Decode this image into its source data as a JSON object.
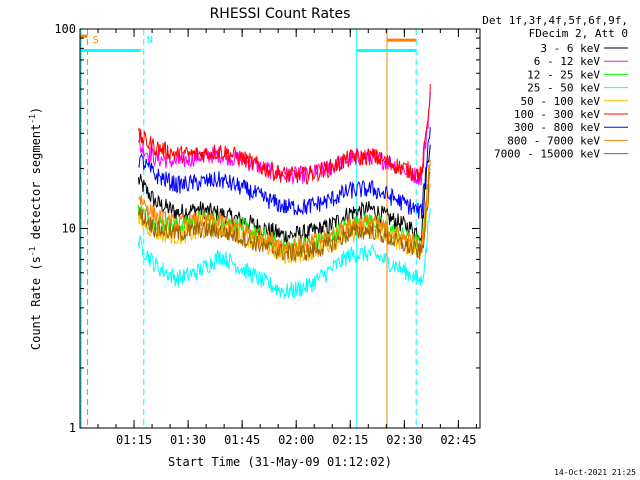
{
  "chart_data": {
    "type": "line",
    "title": "RHESSI Count Rates",
    "xlabel": "Start Time (31-May-09 01:12:02)",
    "ylabel_main": "Count Rate (s",
    "ylabel_sup": "-1",
    "ylabel_tail": " detector segment",
    "ylabel_close": ")",
    "xlim": [
      1.0,
      2.85
    ],
    "ylim": [
      1,
      100
    ],
    "yscale": "log",
    "x_ticks": [
      {
        "value": 1.25,
        "label": "01:15"
      },
      {
        "value": 1.5,
        "label": "01:30"
      },
      {
        "value": 1.75,
        "label": "01:45"
      },
      {
        "value": 2.0,
        "label": "02:00"
      },
      {
        "value": 2.25,
        "label": "02:15"
      },
      {
        "value": 2.5,
        "label": "02:30"
      },
      {
        "value": 2.75,
        "label": "02:45"
      }
    ],
    "y_ticks": [
      {
        "value": 1,
        "label": "1"
      },
      {
        "value": 10,
        "label": "10"
      },
      {
        "value": 100,
        "label": "100"
      }
    ],
    "legend_header": [
      "Det 1f,3f,4f,5f,6f,9f,",
      "FDecim 2, Att 0"
    ],
    "legend_position": "right-outside",
    "series": [
      {
        "name": "3 - 6 keV",
        "color": "#000000",
        "x": [
          1.27,
          1.35,
          1.45,
          1.55,
          1.65,
          1.75,
          1.85,
          1.95,
          2.05,
          2.15,
          2.25,
          2.35,
          2.45,
          2.55,
          2.58,
          2.6,
          2.62
        ],
        "values": [
          17.5,
          13.5,
          12,
          12.5,
          11.8,
          11,
          10,
          9.2,
          9.5,
          10.2,
          12,
          12.5,
          11,
          9.8,
          9.4,
          18,
          28
        ]
      },
      {
        "name": "6 - 12 keV",
        "color": "#ff00ff",
        "x": [
          1.27,
          1.35,
          1.45,
          1.55,
          1.65,
          1.75,
          1.85,
          1.95,
          2.05,
          2.15,
          2.25,
          2.35,
          2.45,
          2.55,
          2.58,
          2.6,
          2.62
        ],
        "values": [
          26,
          22.5,
          21.5,
          23,
          23.5,
          22,
          20,
          18.5,
          18.5,
          20,
          22.5,
          23,
          21,
          18.5,
          18,
          28,
          45
        ]
      },
      {
        "name": "12 - 25 keV",
        "color": "#00ff00",
        "x": [
          1.27,
          1.35,
          1.45,
          1.55,
          1.65,
          1.75,
          1.85,
          1.95,
          2.05,
          2.15,
          2.25,
          2.35,
          2.45,
          2.55,
          2.58,
          2.6,
          2.62
        ],
        "values": [
          12.5,
          10.8,
          10.2,
          11.2,
          11,
          10.2,
          9,
          8.1,
          8.3,
          9,
          10.6,
          11,
          9.7,
          8.6,
          8.2,
          13,
          22
        ]
      },
      {
        "name": "25 - 50 keV",
        "color": "#00ffff",
        "x": [
          1.27,
          1.35,
          1.45,
          1.55,
          1.65,
          1.75,
          1.85,
          1.95,
          2.05,
          2.15,
          2.25,
          2.35,
          2.45,
          2.55,
          2.58,
          2.6,
          2.62
        ],
        "values": [
          8.5,
          6.5,
          5.6,
          6.1,
          7.3,
          6.3,
          5.4,
          4.8,
          5.1,
          6.1,
          7.4,
          7.5,
          6.6,
          5.7,
          5.4,
          7.5,
          14
        ]
      },
      {
        "name": "50 - 100 keV",
        "color": "#ffbf00",
        "x": [
          1.27,
          1.35,
          1.45,
          1.55,
          1.65,
          1.75,
          1.85,
          1.95,
          2.05,
          2.15,
          2.25,
          2.35,
          2.45,
          2.55,
          2.58,
          2.6,
          2.62
        ],
        "values": [
          11,
          9.6,
          9.1,
          9.6,
          9.9,
          9.2,
          8.2,
          7.3,
          7.5,
          8.3,
          9.5,
          9.8,
          8.8,
          7.9,
          7.6,
          11,
          18
        ]
      },
      {
        "name": "100 - 300 keV",
        "color": "#ff0000",
        "x": [
          1.27,
          1.35,
          1.45,
          1.55,
          1.65,
          1.75,
          1.85,
          1.95,
          2.05,
          2.15,
          2.25,
          2.35,
          2.45,
          2.55,
          2.58,
          2.6,
          2.62
        ],
        "values": [
          29,
          25.5,
          23.5,
          23.5,
          24.5,
          22.5,
          20,
          18.5,
          18.5,
          20,
          22.5,
          23,
          21,
          19,
          18.5,
          30,
          48
        ]
      },
      {
        "name": "300 - 800 keV",
        "color": "#0000ff",
        "x": [
          1.27,
          1.35,
          1.45,
          1.55,
          1.65,
          1.75,
          1.85,
          1.95,
          2.05,
          2.15,
          2.25,
          2.35,
          2.45,
          2.55,
          2.58,
          2.6,
          2.62
        ],
        "values": [
          22.5,
          18.5,
          16.5,
          17,
          17.5,
          16,
          14.2,
          12.8,
          12.8,
          13.8,
          15.5,
          15.8,
          14.2,
          12.5,
          12,
          20,
          33
        ]
      },
      {
        "name": "800 - 7000 keV",
        "color": "#ff8000",
        "x": [
          1.27,
          1.35,
          1.45,
          1.55,
          1.65,
          1.75,
          1.85,
          1.95,
          2.05,
          2.15,
          2.25,
          2.35,
          2.45,
          2.55,
          2.58,
          2.6,
          2.62
        ],
        "values": [
          14.5,
          11.5,
          10.5,
          11,
          10.8,
          10,
          9,
          8.2,
          8.3,
          9,
          10.5,
          10.8,
          9.5,
          8.4,
          8,
          13,
          24
        ]
      },
      {
        "name": "7000 - 15000 keV",
        "color": "#a06000",
        "x": [
          1.27,
          1.35,
          1.45,
          1.55,
          1.65,
          1.75,
          1.85,
          1.95,
          2.05,
          2.15,
          2.25,
          2.35,
          2.45,
          2.55,
          2.58,
          2.6,
          2.62
        ],
        "values": [
          12,
          10,
          9.4,
          9.9,
          9.7,
          9,
          8.1,
          7.5,
          7.6,
          8.2,
          9.5,
          9.8,
          8.7,
          7.8,
          7.5,
          11,
          19
        ]
      }
    ],
    "vertical_markers": [
      {
        "x": 1.005,
        "color": "#00ffff",
        "style": "solid"
      },
      {
        "x": 1.035,
        "color": "#ff8000",
        "style": "dashed"
      },
      {
        "x": 1.295,
        "color": "#00ffff",
        "style": "dashed"
      },
      {
        "x": 2.28,
        "color": "#00ffff",
        "style": "solid"
      },
      {
        "x": 2.42,
        "color": "#ff8000",
        "style": "solid"
      },
      {
        "x": 2.555,
        "color": "#00ffff",
        "style": "dashed"
      }
    ],
    "annotations": [
      {
        "text": "S",
        "color": "#ff8000",
        "x": 1.05
      },
      {
        "text": "N",
        "color": "#00ffff",
        "x": 1.3
      }
    ],
    "top_bars": [
      {
        "x0": 1.0,
        "x1": 1.035,
        "color": "#ff8000",
        "y": 92
      },
      {
        "x0": 1.0,
        "x1": 1.28,
        "color": "#00ffff",
        "y": 78
      },
      {
        "x0": 2.28,
        "x1": 2.555,
        "color": "#00ffff",
        "y": 78
      },
      {
        "x0": 2.42,
        "x1": 2.555,
        "color": "#ff8000",
        "y": 88
      }
    ],
    "timestamp": "14-Oct-2021 21:25"
  }
}
